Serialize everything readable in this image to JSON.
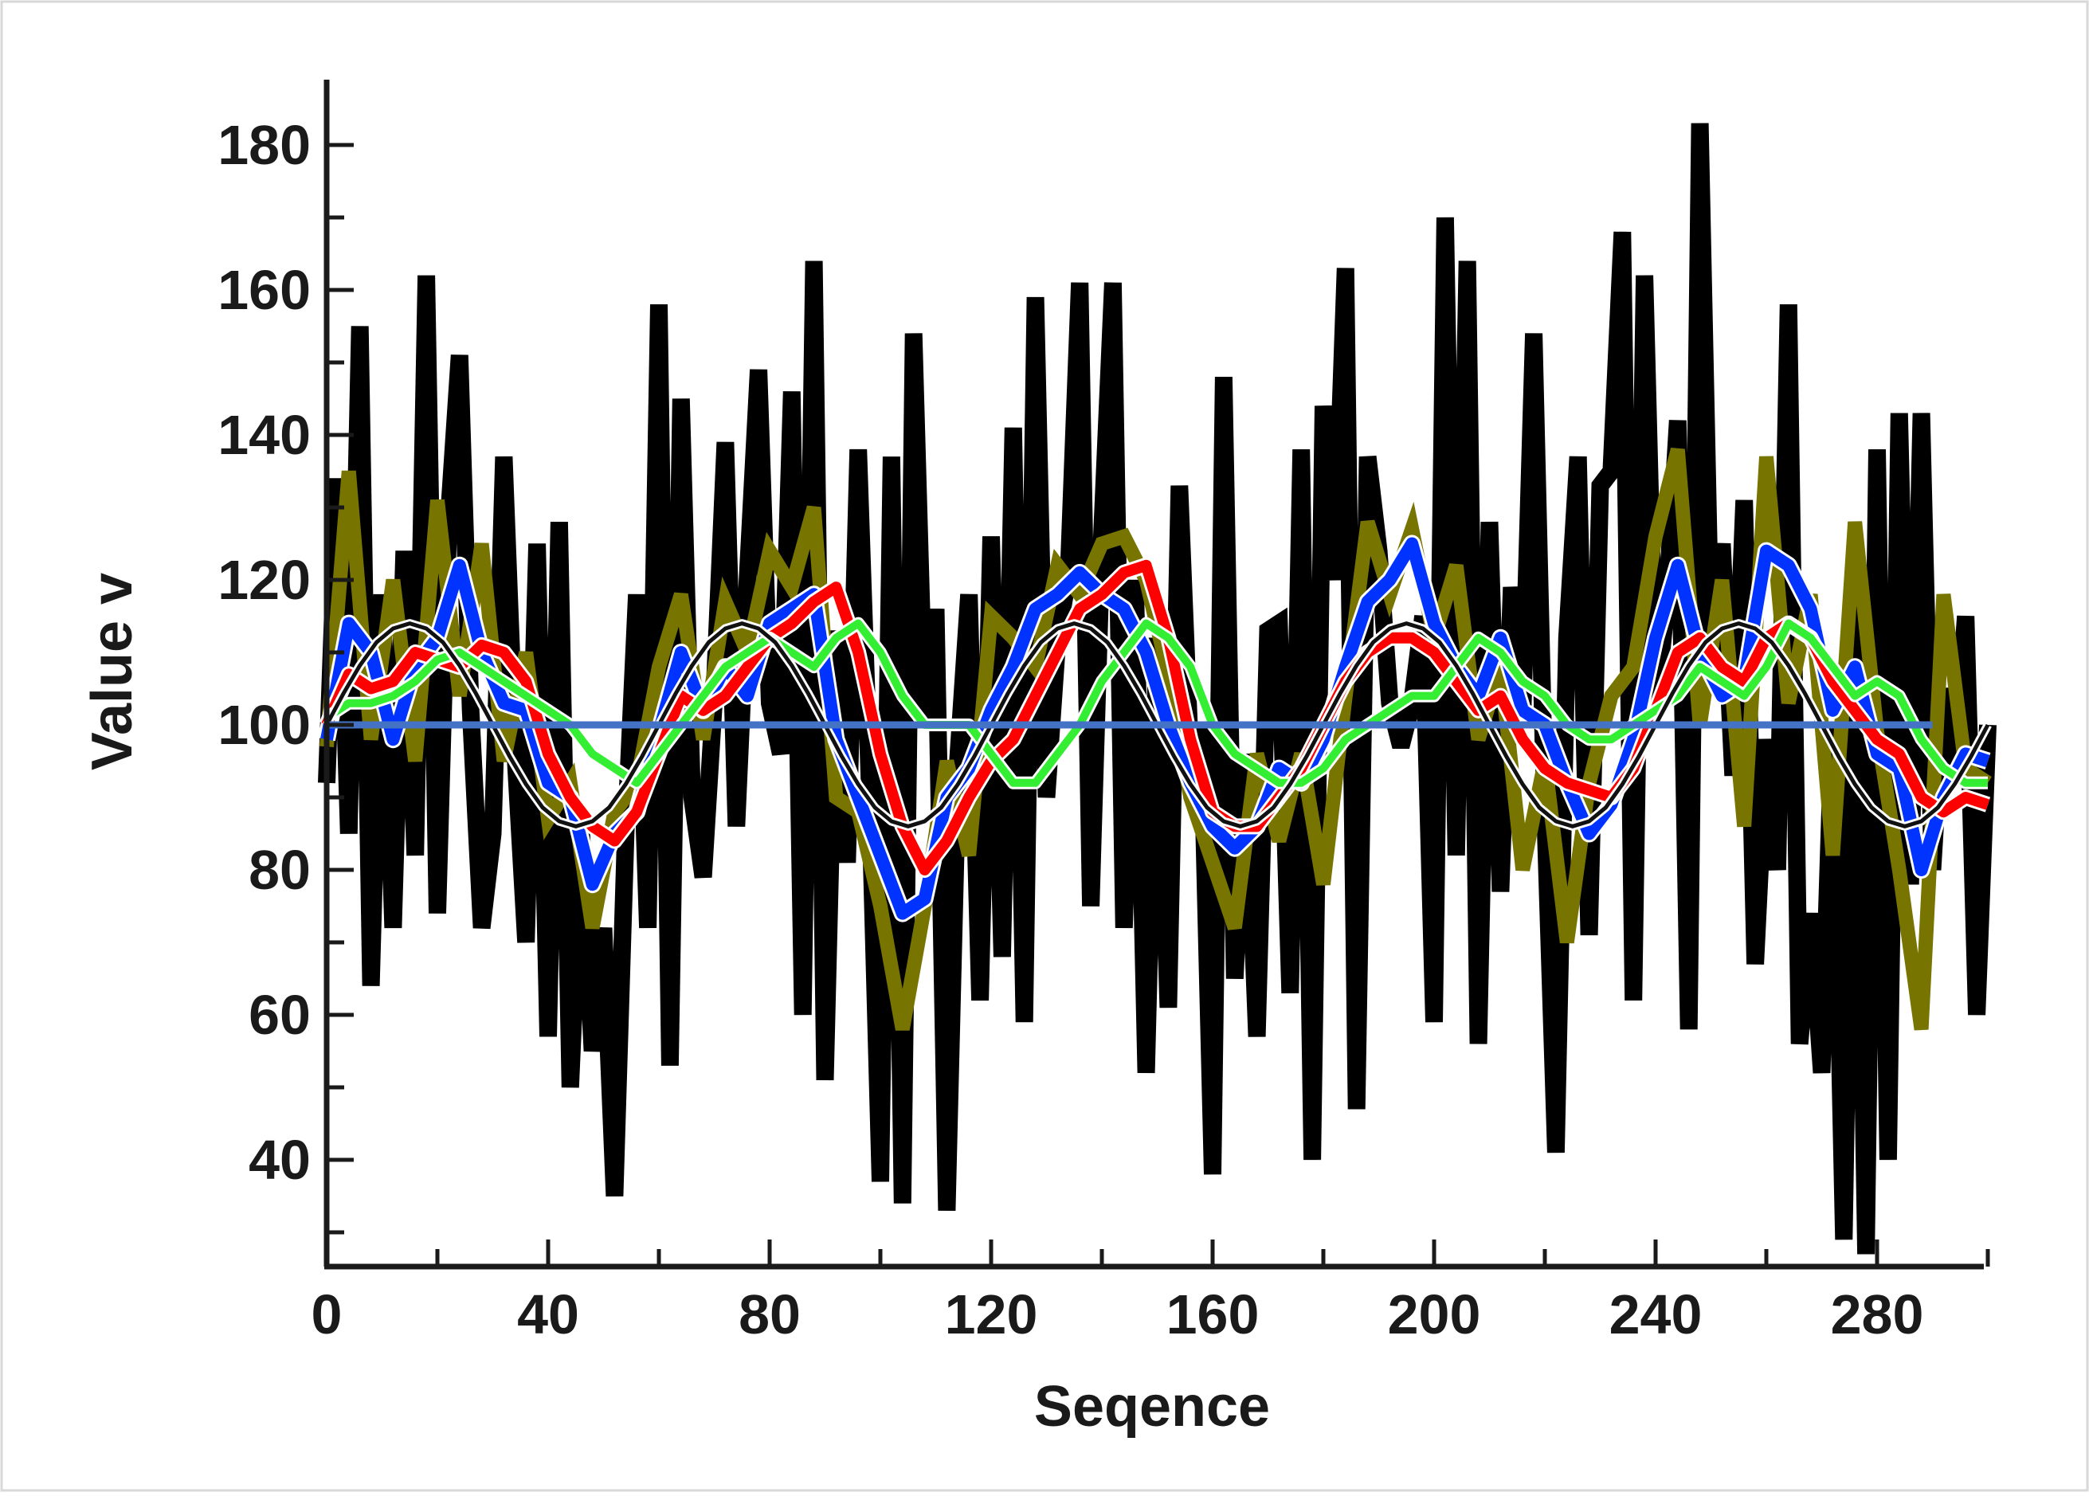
{
  "chart_data": {
    "type": "line",
    "title": "",
    "xlabel": "Seqence",
    "ylabel": "Value v",
    "xlim": [
      0,
      300
    ],
    "ylim": [
      25,
      190
    ],
    "x_ticks": [
      0,
      40,
      80,
      120,
      160,
      200,
      240,
      280
    ],
    "y_ticks": [
      40,
      60,
      80,
      100,
      120,
      140,
      160,
      180
    ],
    "grid": false,
    "legend": "none",
    "series": [
      {
        "color": "#000000",
        "x": [
          0,
          2,
          4,
          6,
          8,
          10,
          12,
          14,
          16,
          18,
          20,
          22,
          24,
          26,
          28,
          30,
          32,
          34,
          36,
          38,
          40,
          42,
          44,
          46,
          48,
          50,
          52,
          54,
          56,
          58,
          60,
          62,
          64,
          66,
          68,
          70,
          72,
          74,
          76,
          78,
          80,
          82,
          84,
          86,
          88,
          90,
          92,
          94,
          96,
          98,
          100,
          102,
          104,
          106,
          108,
          110,
          112,
          114,
          116,
          118,
          120,
          122,
          124,
          126,
          128,
          130,
          132,
          134,
          136,
          138,
          140,
          142,
          144,
          146,
          148,
          150,
          152,
          154,
          156,
          158,
          160,
          162,
          164,
          166,
          168,
          170,
          172,
          174,
          176,
          178,
          180,
          182,
          184,
          186,
          188,
          190,
          192,
          194,
          196,
          198,
          200,
          202,
          204,
          206,
          208,
          210,
          212,
          214,
          216,
          218,
          220,
          222,
          224,
          226,
          228,
          230,
          232,
          234,
          236,
          238,
          240,
          242,
          244,
          246,
          248,
          250,
          252,
          254,
          256,
          258,
          260,
          262,
          264,
          266,
          268,
          270,
          272,
          274,
          276,
          278,
          280,
          282,
          284,
          286,
          288,
          290,
          292,
          294,
          296,
          298,
          300
        ],
        "values": [
          92,
          134,
          85,
          155,
          64,
          118,
          72,
          124,
          82,
          162,
          74,
          128,
          151,
          102,
          72,
          85,
          137,
          97,
          70,
          125,
          57,
          128,
          50,
          85,
          55,
          72,
          35,
          85,
          118,
          72,
          158,
          53,
          145,
          90,
          79,
          104,
          139,
          86,
          120,
          149,
          103,
          96,
          146,
          60,
          164,
          51,
          113,
          81,
          138,
          93,
          37,
          137,
          34,
          154,
          100,
          116,
          33,
          95,
          118,
          62,
          126,
          68,
          141,
          59,
          159,
          90,
          112,
          121,
          161,
          75,
          126,
          161,
          72,
          120,
          52,
          112,
          61,
          133,
          95,
          100,
          38,
          148,
          65,
          96,
          57,
          113,
          114,
          63,
          138,
          40,
          144,
          120,
          163,
          47,
          137,
          124,
          103,
          97,
          103,
          115,
          59,
          170,
          82,
          164,
          56,
          128,
          77,
          119,
          102,
          154,
          89,
          41,
          112,
          137,
          71,
          133,
          135,
          168,
          62,
          162,
          102,
          117,
          142,
          58,
          183,
          110,
          125,
          93,
          131,
          67,
          98,
          80,
          158,
          56,
          74,
          52,
          100,
          29,
          120,
          27,
          138,
          40,
          143,
          78,
          143,
          80,
          105,
          94,
          115,
          60,
          100
        ]
      },
      {
        "color": "#787400",
        "x": [
          0,
          4,
          8,
          12,
          16,
          20,
          24,
          28,
          32,
          36,
          40,
          44,
          48,
          52,
          56,
          60,
          64,
          68,
          72,
          76,
          80,
          84,
          88,
          92,
          96,
          100,
          104,
          108,
          112,
          116,
          120,
          124,
          128,
          132,
          136,
          140,
          144,
          148,
          152,
          156,
          160,
          164,
          168,
          172,
          176,
          180,
          184,
          188,
          192,
          196,
          200,
          204,
          208,
          212,
          216,
          220,
          224,
          228,
          232,
          236,
          240,
          244,
          248,
          252,
          256,
          260,
          264,
          268,
          272,
          276,
          280,
          284,
          288,
          292,
          296,
          300
        ],
        "values": [
          97,
          135,
          98,
          120,
          95,
          131,
          104,
          125,
          95,
          110,
          87,
          92,
          72,
          88,
          92,
          108,
          118,
          98,
          117,
          110,
          124,
          119,
          130,
          90,
          88,
          75,
          58,
          75,
          95,
          82,
          115,
          112,
          108,
          122,
          118,
          125,
          126,
          120,
          107,
          90,
          81,
          72,
          96,
          84,
          96,
          78,
          104,
          128,
          118,
          127,
          112,
          122,
          98,
          108,
          80,
          95,
          70,
          92,
          104,
          108,
          126,
          138,
          100,
          120,
          86,
          137,
          103,
          118,
          82,
          128,
          99,
          80,
          58,
          118,
          94,
          92
        ]
      },
      {
        "color": "#0033ff",
        "x": [
          0,
          4,
          8,
          12,
          16,
          20,
          24,
          28,
          32,
          36,
          40,
          44,
          48,
          52,
          56,
          60,
          64,
          68,
          72,
          76,
          80,
          84,
          88,
          92,
          96,
          100,
          104,
          108,
          112,
          116,
          120,
          124,
          128,
          132,
          136,
          140,
          144,
          148,
          152,
          156,
          160,
          164,
          168,
          172,
          176,
          180,
          184,
          188,
          192,
          196,
          200,
          204,
          208,
          212,
          216,
          220,
          224,
          228,
          232,
          236,
          240,
          244,
          248,
          252,
          256,
          260,
          264,
          268,
          272,
          276,
          280,
          284,
          288,
          292,
          296,
          300
        ],
        "values": [
          98,
          114,
          110,
          98,
          108,
          112,
          122,
          110,
          103,
          102,
          92,
          90,
          78,
          85,
          88,
          99,
          110,
          102,
          108,
          104,
          114,
          116,
          118,
          98,
          90,
          82,
          74,
          76,
          90,
          94,
          102,
          108,
          116,
          118,
          121,
          118,
          116,
          110,
          100,
          92,
          86,
          83,
          86,
          94,
          92,
          98,
          108,
          117,
          120,
          125,
          114,
          108,
          104,
          112,
          102,
          100,
          92,
          85,
          89,
          98,
          112,
          122,
          110,
          104,
          106,
          124,
          122,
          116,
          102,
          108,
          96,
          94,
          80,
          90,
          96,
          95
        ]
      },
      {
        "color": "#ff0000",
        "x": [
          0,
          4,
          8,
          12,
          16,
          20,
          24,
          28,
          32,
          36,
          40,
          44,
          48,
          52,
          56,
          60,
          64,
          68,
          72,
          76,
          80,
          84,
          88,
          92,
          96,
          100,
          104,
          108,
          112,
          116,
          120,
          124,
          128,
          132,
          136,
          140,
          144,
          148,
          152,
          156,
          160,
          164,
          168,
          172,
          176,
          180,
          184,
          188,
          192,
          196,
          200,
          204,
          208,
          212,
          216,
          220,
          224,
          228,
          232,
          236,
          240,
          244,
          248,
          252,
          256,
          260,
          264,
          268,
          272,
          276,
          280,
          284,
          288,
          292,
          296,
          300
        ],
        "values": [
          100,
          107,
          105,
          106,
          110,
          109,
          108,
          111,
          110,
          106,
          96,
          90,
          86,
          84,
          88,
          96,
          104,
          102,
          104,
          108,
          112,
          114,
          117,
          119,
          110,
          96,
          86,
          80,
          84,
          90,
          95,
          98,
          104,
          110,
          116,
          118,
          121,
          122,
          112,
          98,
          88,
          86,
          86,
          90,
          94,
          100,
          106,
          110,
          112,
          112,
          110,
          106,
          102,
          104,
          98,
          94,
          92,
          91,
          90,
          94,
          102,
          110,
          112,
          108,
          106,
          112,
          114,
          112,
          106,
          102,
          98,
          96,
          90,
          88,
          90,
          89
        ]
      },
      {
        "color": "#33ee33",
        "x": [
          0,
          4,
          8,
          12,
          16,
          20,
          24,
          28,
          32,
          36,
          40,
          44,
          48,
          52,
          56,
          60,
          64,
          68,
          72,
          76,
          80,
          84,
          88,
          92,
          96,
          100,
          104,
          108,
          112,
          116,
          120,
          124,
          128,
          132,
          136,
          140,
          144,
          148,
          152,
          156,
          160,
          164,
          168,
          172,
          176,
          180,
          184,
          188,
          192,
          196,
          200,
          204,
          208,
          212,
          216,
          220,
          224,
          228,
          232,
          236,
          240,
          244,
          248,
          252,
          256,
          260,
          264,
          268,
          272,
          276,
          280,
          284,
          288,
          292,
          296,
          300
        ],
        "values": [
          101,
          103,
          103,
          104,
          106,
          109,
          110,
          108,
          106,
          104,
          102,
          100,
          96,
          94,
          92,
          96,
          100,
          104,
          108,
          110,
          112,
          110,
          108,
          112,
          114,
          110,
          104,
          100,
          100,
          100,
          96,
          92,
          92,
          96,
          100,
          106,
          110,
          114,
          112,
          108,
          100,
          96,
          94,
          92,
          92,
          94,
          98,
          100,
          102,
          104,
          104,
          108,
          112,
          110,
          106,
          104,
          100,
          98,
          98,
          100,
          102,
          104,
          108,
          106,
          104,
          108,
          114,
          112,
          108,
          104,
          106,
          104,
          98,
          94,
          92,
          92
        ]
      },
      {
        "color": "#111111",
        "x": [
          0,
          3,
          6,
          9,
          12,
          15,
          18,
          21,
          24,
          27,
          30,
          33,
          36,
          39,
          42,
          45,
          48,
          51,
          54,
          57,
          60,
          63,
          66,
          69,
          72,
          75,
          78,
          81,
          84,
          87,
          90,
          93,
          96,
          99,
          102,
          105,
          108,
          111,
          114,
          117,
          120,
          123,
          126,
          129,
          132,
          135,
          138,
          141,
          144,
          147,
          150,
          153,
          156,
          159,
          162,
          165,
          168,
          171,
          174,
          177,
          180,
          183,
          186,
          189,
          192,
          195,
          198,
          201,
          204,
          207,
          210,
          213,
          216,
          219,
          222,
          225,
          228,
          231,
          234,
          237,
          240,
          243,
          246,
          249,
          252,
          255,
          258,
          261,
          264,
          267,
          270,
          273,
          276,
          279,
          282,
          285,
          288,
          291,
          294,
          297,
          300
        ],
        "values": [
          100,
          104.3,
          108.2,
          111.4,
          113.3,
          114,
          113.3,
          111.4,
          108.2,
          104.3,
          100,
          95.7,
          91.8,
          88.6,
          86.7,
          86,
          86.7,
          88.6,
          91.8,
          95.7,
          100,
          104.3,
          108.2,
          111.4,
          113.3,
          114,
          113.3,
          111.4,
          108.2,
          104.3,
          100,
          95.7,
          91.8,
          88.6,
          86.7,
          86,
          86.7,
          88.6,
          91.8,
          95.7,
          100,
          104.3,
          108.2,
          111.4,
          113.3,
          114,
          113.3,
          111.4,
          108.2,
          104.3,
          100,
          95.7,
          91.8,
          88.6,
          86.7,
          86,
          86.7,
          88.6,
          91.8,
          95.7,
          100,
          104.3,
          108.2,
          111.4,
          113.3,
          114,
          113.3,
          111.4,
          108.2,
          104.3,
          100,
          95.7,
          91.8,
          88.6,
          86.7,
          86,
          86.7,
          88.6,
          91.8,
          95.7,
          100,
          104.3,
          108.2,
          111.4,
          113.3,
          114,
          113.3,
          111.4,
          108.2,
          104.3,
          100,
          95.7,
          91.8,
          88.6,
          86.7,
          86,
          86.7,
          88.6,
          91.8,
          95.7,
          100
        ]
      },
      {
        "color": "#4472c4",
        "x": [
          0,
          290
        ],
        "values": [
          100,
          100
        ]
      }
    ]
  }
}
